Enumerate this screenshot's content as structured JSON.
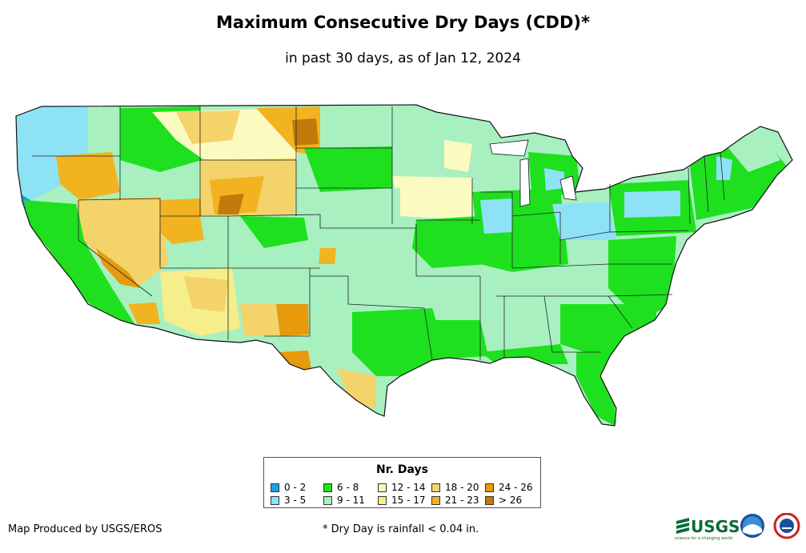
{
  "title": "Maximum Consecutive Dry Days (CDD)*",
  "subtitle": "in past 30 days, as of Jan 12, 2024",
  "legend": {
    "title": "Nr. Days",
    "items": [
      {
        "label": "0 - 2",
        "color": "#1e9ee6"
      },
      {
        "label": "3 - 5",
        "color": "#8de3f5"
      },
      {
        "label": "6 - 8",
        "color": "#1ee01e"
      },
      {
        "label": "9 - 11",
        "color": "#a8f0c0"
      },
      {
        "label": "12 - 14",
        "color": "#fbfac0"
      },
      {
        "label": "15 - 17",
        "color": "#f6ee8a"
      },
      {
        "label": "18 - 20",
        "color": "#f3d36a"
      },
      {
        "label": "21 - 23",
        "color": "#f2b320"
      },
      {
        "label": "24 - 26",
        "color": "#e69a0c"
      },
      {
        "label": "> 26",
        "color": "#c47a0a"
      }
    ]
  },
  "credit": "Map Produced by USGS/EROS",
  "footnote": "* Dry Day is rainfall < 0.04 in.",
  "logos": {
    "usgs": "USGS",
    "usgs_tagline": "science for a changing world"
  }
}
